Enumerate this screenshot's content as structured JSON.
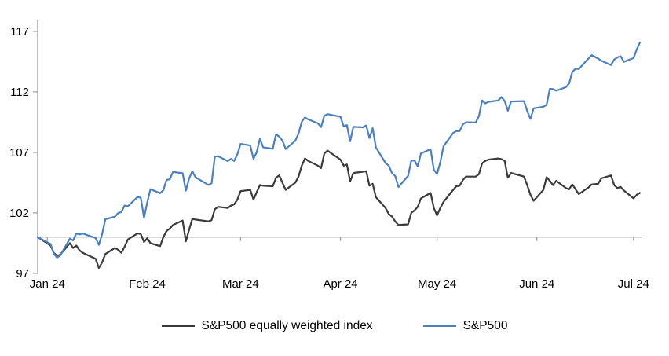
{
  "chart_data": {
    "type": "line",
    "title": "",
    "grid": "off",
    "legend_position": "bottom-center",
    "y_axis": {
      "ticks": [
        97,
        102,
        107,
        112,
        117
      ],
      "baseline": 100,
      "min": 97,
      "max": 117.6
    },
    "x_axis": {
      "ticks": [
        {
          "label": "Jan 24",
          "day": 3
        },
        {
          "label": "Feb 24",
          "day": 34
        },
        {
          "label": "Mar 24",
          "day": 63
        },
        {
          "label": "Apr 24",
          "day": 94
        },
        {
          "label": "May 24",
          "day": 124
        },
        {
          "label": "Jun 24",
          "day": 155
        },
        {
          "label": "Jul 24",
          "day": 185
        }
      ]
    },
    "dates": [
      "Dec 29",
      "Jan 2",
      "Jan 3",
      "Jan 4",
      "Jan 5",
      "Jan 8",
      "Jan 9",
      "Jan 10",
      "Jan 11",
      "Jan 12",
      "Jan 16",
      "Jan 17",
      "Jan 18",
      "Jan 19",
      "Jan 22",
      "Jan 23",
      "Jan 24",
      "Jan 25",
      "Jan 26",
      "Jan 29",
      "Jan 30",
      "Jan 31",
      "Feb 1",
      "Feb 2",
      "Feb 5",
      "Feb 6",
      "Feb 7",
      "Feb 8",
      "Feb 9",
      "Feb 12",
      "Feb 13",
      "Feb 14",
      "Feb 15",
      "Feb 16",
      "Feb 20",
      "Feb 21",
      "Feb 22",
      "Feb 23",
      "Feb 26",
      "Feb 27",
      "Feb 28",
      "Feb 29",
      "Mar 1",
      "Mar 4",
      "Mar 5",
      "Mar 6",
      "Mar 7",
      "Mar 8",
      "Mar 11",
      "Mar 12",
      "Mar 13",
      "Mar 14",
      "Mar 15",
      "Mar 18",
      "Mar 19",
      "Mar 20",
      "Mar 21",
      "Mar 22",
      "Mar 25",
      "Mar 26",
      "Mar 27",
      "Mar 28",
      "Apr 1",
      "Apr 2",
      "Apr 3",
      "Apr 4",
      "Apr 5",
      "Apr 8",
      "Apr 9",
      "Apr 10",
      "Apr 11",
      "Apr 12",
      "Apr 15",
      "Apr 16",
      "Apr 17",
      "Apr 18",
      "Apr 19",
      "Apr 22",
      "Apr 23",
      "Apr 24",
      "Apr 25",
      "Apr 26",
      "Apr 29",
      "Apr 30",
      "May 1",
      "May 2",
      "May 3",
      "May 6",
      "May 7",
      "May 8",
      "May 9",
      "May 10",
      "May 13",
      "May 14",
      "May 15",
      "May 16",
      "May 17",
      "May 20",
      "May 21",
      "May 22",
      "May 23",
      "May 24",
      "May 28",
      "May 29",
      "May 30",
      "May 31",
      "Jun 3",
      "Jun 4",
      "Jun 5",
      "Jun 6",
      "Jun 7",
      "Jun 10",
      "Jun 11",
      "Jun 12",
      "Jun 13",
      "Jun 14",
      "Jun 17",
      "Jun 18",
      "Jun 20",
      "Jun 21",
      "Jun 24",
      "Jun 25",
      "Jun 26",
      "Jun 27",
      "Jun 28",
      "Jul 1",
      "Jul 2",
      "Jul 3"
    ],
    "x_days": [
      0,
      4,
      5,
      6,
      7,
      10,
      11,
      12,
      13,
      14,
      18,
      19,
      20,
      21,
      24,
      25,
      26,
      27,
      28,
      31,
      32,
      33,
      34,
      35,
      38,
      39,
      40,
      41,
      42,
      45,
      46,
      47,
      48,
      49,
      53,
      54,
      55,
      56,
      59,
      60,
      61,
      62,
      63,
      66,
      67,
      68,
      69,
      70,
      73,
      74,
      75,
      76,
      77,
      80,
      81,
      82,
      83,
      84,
      87,
      88,
      89,
      90,
      94,
      95,
      96,
      97,
      98,
      101,
      102,
      103,
      104,
      105,
      108,
      109,
      110,
      111,
      112,
      115,
      116,
      117,
      118,
      119,
      122,
      123,
      124,
      125,
      126,
      129,
      130,
      131,
      132,
      133,
      136,
      137,
      138,
      139,
      140,
      143,
      144,
      145,
      146,
      147,
      151,
      152,
      153,
      154,
      157,
      158,
      159,
      160,
      161,
      164,
      165,
      166,
      167,
      168,
      171,
      172,
      174,
      175,
      178,
      179,
      180,
      181,
      182,
      185,
      186,
      187
    ],
    "series": [
      {
        "key": "sp500-equal-weight",
        "name": "S&P500 equally weighted index",
        "color": "#3a3a3a",
        "values": [
          100.0,
          99.3,
          98.7,
          98.45,
          98.55,
          99.5,
          99.1,
          99.3,
          98.9,
          98.7,
          98.2,
          97.45,
          97.9,
          98.6,
          99.1,
          98.95,
          98.7,
          99.2,
          99.8,
          100.3,
          100.25,
          99.6,
          99.9,
          99.5,
          99.25,
          100.0,
          100.5,
          100.7,
          101.0,
          101.37,
          99.65,
          100.6,
          101.5,
          101.45,
          101.3,
          101.4,
          102.3,
          102.5,
          102.4,
          102.6,
          102.7,
          103.1,
          103.8,
          103.9,
          103.1,
          103.7,
          104.3,
          104.25,
          104.2,
          104.9,
          105.1,
          104.5,
          103.9,
          104.5,
          105.0,
          105.9,
          106.5,
          106.3,
          105.9,
          105.7,
          106.9,
          107.15,
          106.4,
          105.9,
          106.0,
          104.6,
          105.3,
          105.4,
          105.45,
          104.25,
          104.4,
          103.3,
          102.4,
          101.9,
          101.7,
          101.3,
          101.0,
          101.05,
          102.0,
          102.2,
          102.5,
          103.2,
          103.65,
          102.4,
          101.8,
          102.4,
          102.9,
          103.9,
          104.2,
          104.25,
          104.7,
          105.0,
          105.0,
          105.2,
          106.1,
          106.3,
          106.4,
          106.5,
          106.45,
          106.3,
          104.9,
          105.3,
          105.0,
          104.3,
          103.5,
          103.0,
          103.9,
          104.95,
          104.65,
          104.3,
          104.65,
          104.05,
          103.95,
          104.35,
          103.95,
          103.55,
          104.1,
          104.35,
          104.4,
          104.85,
          105.1,
          104.3,
          104.05,
          104.15,
          103.85,
          103.2,
          103.5,
          103.65
        ]
      },
      {
        "key": "sp500",
        "name": "S&P500",
        "color": "#4b80bd",
        "values": [
          100.0,
          99.43,
          98.64,
          98.3,
          98.48,
          99.87,
          99.72,
          100.29,
          100.22,
          100.29,
          99.92,
          99.36,
          100.23,
          101.47,
          101.69,
          101.99,
          102.07,
          102.61,
          102.54,
          103.31,
          103.25,
          101.59,
          102.86,
          103.96,
          103.63,
          103.87,
          104.72,
          104.78,
          105.38,
          105.28,
          103.84,
          104.84,
          105.45,
          104.94,
          104.31,
          104.44,
          106.65,
          106.69,
          106.28,
          106.46,
          106.29,
          106.84,
          107.7,
          107.57,
          106.47,
          107.02,
          108.12,
          107.42,
          107.3,
          108.5,
          108.29,
          107.98,
          107.28,
          107.96,
          108.57,
          109.53,
          109.89,
          109.73,
          109.4,
          109.09,
          110.03,
          110.16,
          109.94,
          109.14,
          109.26,
          107.91,
          109.11,
          109.07,
          109.23,
          108.19,
          109.0,
          107.41,
          106.12,
          105.9,
          105.29,
          105.06,
          104.14,
          105.05,
          106.31,
          106.33,
          105.84,
          106.92,
          107.26,
          105.57,
          105.21,
          106.17,
          107.5,
          108.61,
          108.76,
          108.76,
          109.31,
          109.49,
          109.47,
          110.0,
          111.29,
          111.05,
          111.18,
          111.29,
          111.56,
          111.26,
          110.44,
          111.21,
          111.24,
          110.42,
          109.76,
          110.64,
          110.77,
          110.93,
          112.25,
          112.23,
          112.1,
          112.39,
          112.7,
          113.65,
          113.92,
          113.88,
          114.75,
          115.04,
          114.75,
          114.57,
          114.22,
          114.67,
          114.85,
          114.95,
          114.48,
          114.79,
          115.5,
          116.09
        ]
      }
    ],
    "axis_color": "#a3a3a3"
  }
}
